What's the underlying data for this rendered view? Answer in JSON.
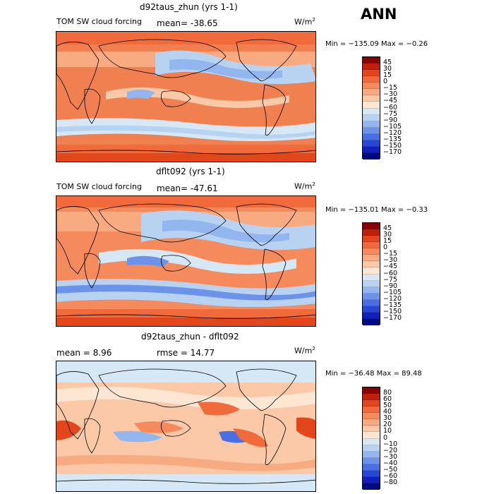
{
  "season": "ANN",
  "units_base": "W/m",
  "units_exp": "2",
  "panels": [
    {
      "title": "d92taus_zhun (yrs 1-1)",
      "variable": "TOM SW cloud forcing",
      "mean_text": "mean= -38.65",
      "minmax": "Min = −135.09  Max =   −0.26",
      "levels": [
        "45",
        "30",
        "15",
        "0",
        "−15",
        "−30",
        "−45",
        "−60",
        "−75",
        "−90",
        "−105",
        "−120",
        "−135",
        "−150",
        "−170"
      ],
      "colors": [
        "#8b0000",
        "#c0200a",
        "#e4461c",
        "#f06a3c",
        "#f58a5c",
        "#f8aa80",
        "#fbc8a8",
        "#fde6d2",
        "#d6e8f6",
        "#b8d2f2",
        "#94b6ee",
        "#6d92ea",
        "#4a6fe4",
        "#2a46d6",
        "#1020b8",
        "#000a80"
      ]
    },
    {
      "title": "dflt092 (yrs 1-1)",
      "variable": "TOM SW cloud forcing",
      "mean_text": "mean= -47.61",
      "minmax": "Min = −135.01  Max =  −0.33",
      "levels": [
        "45",
        "30",
        "15",
        "0",
        "−15",
        "−30",
        "−45",
        "−60",
        "−75",
        "−90",
        "−105",
        "−120",
        "−135",
        "−150",
        "−170"
      ],
      "colors": [
        "#8b0000",
        "#c0200a",
        "#e4461c",
        "#f06a3c",
        "#f58a5c",
        "#f8aa80",
        "#fbc8a8",
        "#fde6d2",
        "#d6e8f6",
        "#b8d2f2",
        "#94b6ee",
        "#6d92ea",
        "#4a6fe4",
        "#2a46d6",
        "#1020b8",
        "#000a80"
      ]
    },
    {
      "title": "d92taus_zhun - dflt092",
      "mean_text": "mean =    8.96",
      "rmse_text": "rmse =   14.77",
      "minmax": "Min = −36.48  Max =   89.48",
      "levels": [
        "80",
        "60",
        "50",
        "40",
        "30",
        "20",
        "10",
        "0",
        "−10",
        "−20",
        "−30",
        "−40",
        "−50",
        "−60",
        "−80"
      ],
      "colors": [
        "#8b0000",
        "#c0200a",
        "#e4461c",
        "#f06a3c",
        "#f58a5c",
        "#f8aa80",
        "#fbc8a8",
        "#fde6d2",
        "#d6e8f6",
        "#b8d2f2",
        "#94b6ee",
        "#6d92ea",
        "#4a6fe4",
        "#2a46d6",
        "#1020b8",
        "#000a80"
      ]
    }
  ]
}
